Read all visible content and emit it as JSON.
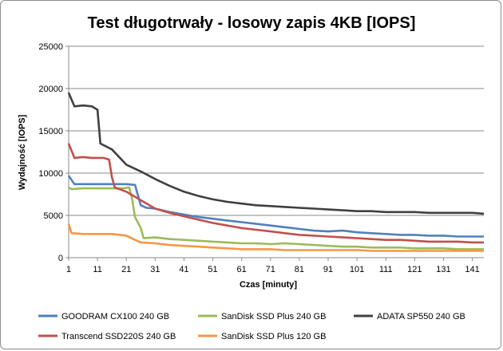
{
  "chart_data": {
    "type": "line",
    "title": "Test długotrwały - losowy zapis 4KB [IOPS]",
    "xlabel": "Czas [minuty]",
    "ylabel": "Wydajność [IOPS]",
    "xlim": [
      1,
      145
    ],
    "ylim": [
      0,
      25000
    ],
    "x_ticks": [
      1,
      11,
      21,
      31,
      41,
      51,
      61,
      71,
      81,
      91,
      101,
      111,
      121,
      131,
      141
    ],
    "y_ticks": [
      0,
      5000,
      10000,
      15000,
      20000,
      25000
    ],
    "y_tick_labels": [
      "0",
      "5000",
      "10000",
      "15000",
      "20000",
      "25000"
    ],
    "grid": "horizontal",
    "legend_position": "bottom",
    "series": [
      {
        "name": "GOODRAM CX100 240 GB",
        "color": "#4f81bd",
        "points": [
          [
            1,
            9700
          ],
          [
            3,
            8700
          ],
          [
            6,
            8700
          ],
          [
            11,
            8700
          ],
          [
            16,
            8700
          ],
          [
            21,
            8700
          ],
          [
            24,
            8600
          ],
          [
            26,
            6200
          ],
          [
            28,
            5900
          ],
          [
            31,
            5800
          ],
          [
            36,
            5400
          ],
          [
            41,
            5100
          ],
          [
            46,
            4800
          ],
          [
            51,
            4600
          ],
          [
            56,
            4400
          ],
          [
            61,
            4200
          ],
          [
            66,
            4000
          ],
          [
            71,
            3800
          ],
          [
            76,
            3600
          ],
          [
            81,
            3400
          ],
          [
            86,
            3200
          ],
          [
            91,
            3100
          ],
          [
            96,
            3200
          ],
          [
            101,
            3000
          ],
          [
            106,
            2900
          ],
          [
            111,
            2800
          ],
          [
            116,
            2700
          ],
          [
            121,
            2700
          ],
          [
            126,
            2600
          ],
          [
            131,
            2600
          ],
          [
            136,
            2500
          ],
          [
            141,
            2500
          ],
          [
            145,
            2500
          ]
        ]
      },
      {
        "name": "SanDisk SSD Plus 240 GB",
        "color": "#9bbb59",
        "points": [
          [
            1,
            8300
          ],
          [
            2,
            8100
          ],
          [
            6,
            8200
          ],
          [
            11,
            8200
          ],
          [
            16,
            8200
          ],
          [
            20,
            8200
          ],
          [
            22,
            8300
          ],
          [
            23,
            7000
          ],
          [
            24,
            4800
          ],
          [
            26,
            3500
          ],
          [
            27,
            2300
          ],
          [
            31,
            2400
          ],
          [
            36,
            2200
          ],
          [
            41,
            2100
          ],
          [
            46,
            2000
          ],
          [
            51,
            1900
          ],
          [
            56,
            1800
          ],
          [
            61,
            1700
          ],
          [
            66,
            1700
          ],
          [
            71,
            1600
          ],
          [
            76,
            1700
          ],
          [
            81,
            1600
          ],
          [
            86,
            1500
          ],
          [
            91,
            1400
          ],
          [
            96,
            1300
          ],
          [
            101,
            1300
          ],
          [
            106,
            1200
          ],
          [
            111,
            1200
          ],
          [
            116,
            1200
          ],
          [
            121,
            1100
          ],
          [
            126,
            1100
          ],
          [
            131,
            1100
          ],
          [
            136,
            1000
          ],
          [
            141,
            1000
          ],
          [
            145,
            1000
          ]
        ]
      },
      {
        "name": "ADATA SP550 240 GB",
        "color": "#404040",
        "points": [
          [
            1,
            19500
          ],
          [
            3,
            17900
          ],
          [
            6,
            18000
          ],
          [
            9,
            17900
          ],
          [
            11,
            17500
          ],
          [
            12,
            13500
          ],
          [
            16,
            12800
          ],
          [
            21,
            11000
          ],
          [
            26,
            10200
          ],
          [
            31,
            9300
          ],
          [
            36,
            8500
          ],
          [
            41,
            7800
          ],
          [
            46,
            7300
          ],
          [
            51,
            6900
          ],
          [
            56,
            6600
          ],
          [
            61,
            6400
          ],
          [
            66,
            6200
          ],
          [
            71,
            6100
          ],
          [
            76,
            6000
          ],
          [
            81,
            5900
          ],
          [
            86,
            5800
          ],
          [
            91,
            5700
          ],
          [
            96,
            5600
          ],
          [
            101,
            5500
          ],
          [
            106,
            5500
          ],
          [
            111,
            5400
          ],
          [
            116,
            5400
          ],
          [
            121,
            5400
          ],
          [
            126,
            5300
          ],
          [
            131,
            5300
          ],
          [
            136,
            5300
          ],
          [
            141,
            5300
          ],
          [
            145,
            5200
          ]
        ]
      },
      {
        "name": "Transcend SSD220S 240 GB",
        "color": "#c0504d",
        "points": [
          [
            1,
            13500
          ],
          [
            3,
            11800
          ],
          [
            6,
            11900
          ],
          [
            9,
            11800
          ],
          [
            13,
            11800
          ],
          [
            15,
            11600
          ],
          [
            16,
            9500
          ],
          [
            17,
            8300
          ],
          [
            21,
            7800
          ],
          [
            26,
            6800
          ],
          [
            31,
            5800
          ],
          [
            36,
            5300
          ],
          [
            41,
            4900
          ],
          [
            46,
            4500
          ],
          [
            51,
            4100
          ],
          [
            56,
            3800
          ],
          [
            61,
            3500
          ],
          [
            66,
            3300
          ],
          [
            71,
            3100
          ],
          [
            76,
            2900
          ],
          [
            81,
            2700
          ],
          [
            86,
            2600
          ],
          [
            91,
            2500
          ],
          [
            96,
            2400
          ],
          [
            101,
            2300
          ],
          [
            106,
            2200
          ],
          [
            111,
            2100
          ],
          [
            116,
            2100
          ],
          [
            121,
            2000
          ],
          [
            126,
            1900
          ],
          [
            131,
            1900
          ],
          [
            136,
            1900
          ],
          [
            141,
            1800
          ],
          [
            145,
            1800
          ]
        ]
      },
      {
        "name": "SanDisk SSD Plus 120 GB",
        "color": "#f79646",
        "points": [
          [
            1,
            4000
          ],
          [
            2,
            2900
          ],
          [
            6,
            2800
          ],
          [
            11,
            2800
          ],
          [
            16,
            2800
          ],
          [
            21,
            2600
          ],
          [
            24,
            2100
          ],
          [
            26,
            1800
          ],
          [
            31,
            1700
          ],
          [
            36,
            1500
          ],
          [
            41,
            1400
          ],
          [
            46,
            1300
          ],
          [
            51,
            1200
          ],
          [
            56,
            1100
          ],
          [
            61,
            1000
          ],
          [
            66,
            1000
          ],
          [
            71,
            1000
          ],
          [
            76,
            900
          ],
          [
            81,
            900
          ],
          [
            86,
            900
          ],
          [
            91,
            900
          ],
          [
            96,
            900
          ],
          [
            101,
            900
          ],
          [
            106,
            800
          ],
          [
            111,
            800
          ],
          [
            116,
            800
          ],
          [
            121,
            800
          ],
          [
            126,
            800
          ],
          [
            131,
            800
          ],
          [
            136,
            800
          ],
          [
            141,
            800
          ],
          [
            145,
            800
          ]
        ]
      }
    ]
  }
}
